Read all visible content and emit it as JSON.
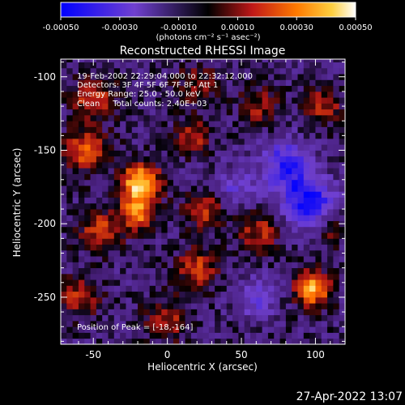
{
  "chart_data": {
    "type": "heatmap",
    "title": "Reconstructed RHESSI Image",
    "xlabel": "Heliocentric X (arcsec)",
    "ylabel": "Heliocentric Y (arcsec)",
    "x_ticks": [
      -50,
      0,
      50,
      100
    ],
    "y_ticks": [
      -100,
      -150,
      -200,
      -250
    ],
    "xlim": [
      -72,
      120
    ],
    "ylim": [
      -282,
      -88
    ],
    "colorbar": {
      "ticks": [
        "-0.00050",
        "-0.00030",
        "-0.00010",
        "0.00010",
        "0.00030",
        "0.00050"
      ],
      "range": [
        -0.0005,
        0.0005
      ],
      "unit_label": "(photons cm⁻² s⁻¹ asec⁻²)"
    },
    "annotations": [
      "19-Feb-2002 22:29:04.000 to 22:32:12.000",
      "Detectors: 3F 4F 5F 6F 7F 8F, Att 1",
      "Energy Range: 25.0 - 50.0 keV",
      "Clean     Total counts: 2.40E+03"
    ],
    "peak_label": "Position of Peak = [-18,-164]",
    "peak": {
      "x": -18,
      "y": -164
    },
    "sources": [
      {
        "x": -18,
        "y": -172,
        "sigma": 9,
        "amp": 0.00052
      },
      {
        "x": -20,
        "y": -192,
        "sigma": 8,
        "amp": 0.00036
      },
      {
        "x": -55,
        "y": -150,
        "sigma": 10,
        "amp": 0.0003
      },
      {
        "x": -50,
        "y": -115,
        "sigma": 10,
        "amp": 0.00026
      },
      {
        "x": -45,
        "y": -205,
        "sigma": 10,
        "amp": 0.00026
      },
      {
        "x": -60,
        "y": -250,
        "sigma": 9,
        "amp": 0.00024
      },
      {
        "x": 0,
        "y": -265,
        "sigma": 10,
        "amp": 0.0002
      },
      {
        "x": 20,
        "y": -230,
        "sigma": 9,
        "amp": 0.00027
      },
      {
        "x": 25,
        "y": -190,
        "sigma": 9,
        "amp": 0.00026
      },
      {
        "x": 18,
        "y": -140,
        "sigma": 8,
        "amp": 0.00022
      },
      {
        "x": 62,
        "y": -205,
        "sigma": 10,
        "amp": 0.00022
      },
      {
        "x": 62,
        "y": -120,
        "sigma": 9,
        "amp": 0.00018
      },
      {
        "x": 105,
        "y": -120,
        "sigma": 9,
        "amp": 0.00022
      },
      {
        "x": 98,
        "y": -244,
        "sigma": 8,
        "amp": 0.00046
      },
      {
        "x": 110,
        "y": -205,
        "sigma": 7,
        "amp": 0.00016
      },
      {
        "x": 20,
        "y": -105,
        "sigma": 10,
        "amp": 0.00016
      },
      {
        "x": 80,
        "y": -160,
        "sigma": 12,
        "amp": -0.0003
      },
      {
        "x": 95,
        "y": -185,
        "sigma": 12,
        "amp": -0.00038
      },
      {
        "x": 45,
        "y": -175,
        "sigma": 10,
        "amp": -0.00016
      },
      {
        "x": 60,
        "y": -250,
        "sigma": 10,
        "amp": -0.00018
      }
    ],
    "grid": false
  },
  "footer": {
    "date": "27-Apr-2022 13:07"
  }
}
